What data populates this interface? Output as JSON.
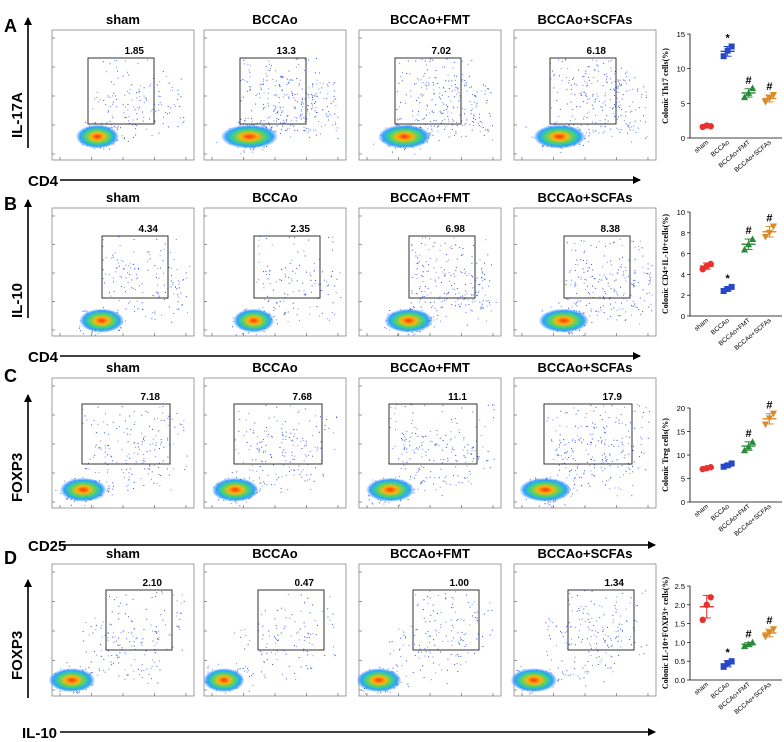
{
  "figure": {
    "panels": [
      {
        "letter": "A",
        "ylabel": "IL-17A",
        "xlabel": "CD4",
        "plots": [
          {
            "title": "sham",
            "gate_pct": "1.85",
            "density": 0.7
          },
          {
            "title": "BCCAo",
            "gate_pct": "13.3",
            "density": 1.5
          },
          {
            "title": "BCCAo+FMT",
            "gate_pct": "7.02",
            "density": 1.25
          },
          {
            "title": "BCCAo+SCFAs",
            "gate_pct": "6.18",
            "density": 1.2
          }
        ]
      },
      {
        "letter": "B",
        "ylabel": "IL-10",
        "xlabel": "CD4",
        "plots": [
          {
            "title": "sham",
            "gate_pct": "4.34",
            "density": 0.8
          },
          {
            "title": "BCCAo",
            "gate_pct": "2.35",
            "density": 0.6
          },
          {
            "title": "BCCAo+FMT",
            "gate_pct": "6.98",
            "density": 1.0
          },
          {
            "title": "BCCAo+SCFAs",
            "gate_pct": "8.38",
            "density": 1.1
          }
        ]
      },
      {
        "letter": "C",
        "ylabel": "FOXP3",
        "xlabel": "CD25",
        "plots": [
          {
            "title": "sham",
            "gate_pct": "7.18",
            "density": 0.9
          },
          {
            "title": "BCCAo",
            "gate_pct": "7.68",
            "density": 0.9
          },
          {
            "title": "BCCAo+FMT",
            "gate_pct": "11.1",
            "density": 1.0
          },
          {
            "title": "BCCAo+SCFAs",
            "gate_pct": "17.9",
            "density": 1.2
          }
        ]
      },
      {
        "letter": "D",
        "ylabel": "FOXP3",
        "xlabel": "IL-10",
        "plots": [
          {
            "title": "sham",
            "gate_pct": "2.10",
            "density": 0.9
          },
          {
            "title": "BCCAo",
            "gate_pct": "0.47",
            "density": 0.6
          },
          {
            "title": "BCCAo+FMT",
            "gate_pct": "1.00",
            "density": 0.8
          },
          {
            "title": "BCCAo+SCFAs",
            "gate_pct": "1.34",
            "density": 0.9
          }
        ]
      }
    ]
  },
  "chart_data": [
    {
      "type": "scatter",
      "title": "",
      "ylabel": "Colonic Th17 cells(%)",
      "categories": [
        "sham",
        "BCCAo",
        "BCCAo+FMT",
        "BCCAo+SCFAs"
      ],
      "ylim": [
        0,
        15
      ],
      "yticks": [
        0,
        5,
        10,
        15
      ],
      "colors": [
        "#e8312d",
        "#2747c7",
        "#2a8a3a",
        "#d98b2a"
      ],
      "markers": [
        "circle",
        "square",
        "triangle",
        "invtriangle"
      ],
      "series": [
        {
          "name": "sham",
          "values": [
            1.6,
            1.8,
            1.7
          ],
          "mean": 1.7,
          "sd": 0.1,
          "annotation": ""
        },
        {
          "name": "BCCAo",
          "values": [
            11.8,
            12.6,
            13.2
          ],
          "mean": 12.5,
          "sd": 0.7,
          "annotation": "*"
        },
        {
          "name": "BCCAo+FMT",
          "values": [
            5.9,
            6.5,
            7.2
          ],
          "mean": 6.5,
          "sd": 0.6,
          "annotation": "#"
        },
        {
          "name": "BCCAo+SCFAs",
          "values": [
            5.2,
            5.7,
            6.2
          ],
          "mean": 5.7,
          "sd": 0.5,
          "annotation": "#"
        }
      ]
    },
    {
      "type": "scatter",
      "title": "",
      "ylabel": "Colonic CD4+IL-10+cells(%)",
      "categories": [
        "sham",
        "BCCAo",
        "BCCAo+FMT",
        "BCCAo+SCFAs"
      ],
      "ylim": [
        0,
        10
      ],
      "yticks": [
        0,
        2,
        4,
        6,
        8,
        10
      ],
      "colors": [
        "#e8312d",
        "#2747c7",
        "#2a8a3a",
        "#d98b2a"
      ],
      "markers": [
        "circle",
        "square",
        "triangle",
        "invtriangle"
      ],
      "series": [
        {
          "name": "sham",
          "values": [
            4.5,
            4.8,
            5.0
          ],
          "mean": 4.8,
          "sd": 0.3,
          "annotation": ""
        },
        {
          "name": "BCCAo",
          "values": [
            2.4,
            2.6,
            2.8
          ],
          "mean": 2.6,
          "sd": 0.2,
          "annotation": "*"
        },
        {
          "name": "BCCAo+FMT",
          "values": [
            6.4,
            6.9,
            7.4
          ],
          "mean": 6.9,
          "sd": 0.5,
          "annotation": "#"
        },
        {
          "name": "BCCAo+SCFAs",
          "values": [
            7.6,
            8.0,
            8.6
          ],
          "mean": 8.1,
          "sd": 0.5,
          "annotation": "#"
        }
      ]
    },
    {
      "type": "scatter",
      "title": "",
      "ylabel": "Colonic Treg cells(%)",
      "categories": [
        "sham",
        "BCCAo",
        "BCCAo+FMT",
        "BCCAo+SCFAs"
      ],
      "ylim": [
        0,
        20
      ],
      "yticks": [
        0,
        5,
        10,
        15,
        20
      ],
      "colors": [
        "#e8312d",
        "#2747c7",
        "#2a8a3a",
        "#d98b2a"
      ],
      "markers": [
        "circle",
        "square",
        "triangle",
        "invtriangle"
      ],
      "series": [
        {
          "name": "sham",
          "values": [
            7.0,
            7.2,
            7.4
          ],
          "mean": 7.2,
          "sd": 0.2,
          "annotation": ""
        },
        {
          "name": "BCCAo",
          "values": [
            7.5,
            7.8,
            8.2
          ],
          "mean": 7.8,
          "sd": 0.3,
          "annotation": ""
        },
        {
          "name": "BCCAo+FMT",
          "values": [
            11.0,
            11.8,
            12.8
          ],
          "mean": 11.9,
          "sd": 0.9,
          "annotation": "#"
        },
        {
          "name": "BCCAo+SCFAs",
          "values": [
            16.5,
            17.8,
            18.8
          ],
          "mean": 17.7,
          "sd": 1.1,
          "annotation": "#"
        }
      ]
    },
    {
      "type": "scatter",
      "title": "",
      "ylabel": "Colonic IL-10+FOXP3+ cells(%)",
      "categories": [
        "sham",
        "BCCAo",
        "BCCAo+FMT",
        "BCCAo+SCFAs"
      ],
      "ylim": [
        0,
        2.5
      ],
      "yticks": [
        0.0,
        0.5,
        1.0,
        1.5,
        2.0,
        2.5
      ],
      "colors": [
        "#e8312d",
        "#2747c7",
        "#2a8a3a",
        "#d98b2a"
      ],
      "markers": [
        "circle",
        "square",
        "triangle",
        "invtriangle"
      ],
      "series": [
        {
          "name": "sham",
          "values": [
            1.6,
            2.0,
            2.2
          ],
          "mean": 1.95,
          "sd": 0.3,
          "annotation": ""
        },
        {
          "name": "BCCAo",
          "values": [
            0.35,
            0.45,
            0.5
          ],
          "mean": 0.43,
          "sd": 0.08,
          "annotation": "*"
        },
        {
          "name": "BCCAo+FMT",
          "values": [
            0.9,
            0.95,
            1.0
          ],
          "mean": 0.95,
          "sd": 0.05,
          "annotation": "#"
        },
        {
          "name": "BCCAo+SCFAs",
          "values": [
            1.15,
            1.25,
            1.35
          ],
          "mean": 1.25,
          "sd": 0.1,
          "annotation": "#"
        }
      ]
    }
  ]
}
